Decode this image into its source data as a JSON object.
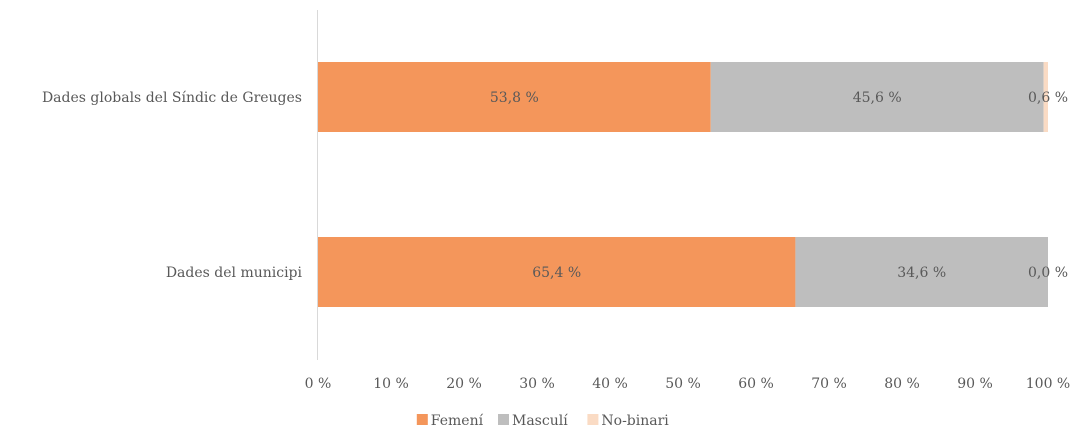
{
  "chart_data": {
    "type": "bar",
    "orientation": "horizontal",
    "stacked": "percent",
    "categories": [
      "Dades globals del Síndic de Greuges",
      "Dades del municipi"
    ],
    "series": [
      {
        "name": "Femení",
        "values": [
          53.8,
          65.4
        ],
        "labels": [
          "53,8 %",
          "65,4 %"
        ],
        "color": "#F4965B"
      },
      {
        "name": "Masculí",
        "values": [
          45.6,
          34.6
        ],
        "labels": [
          "45,6 %",
          "34,6 %"
        ],
        "color": "#BEBEBE"
      },
      {
        "name": "No-binari",
        "values": [
          0.6,
          0.0
        ],
        "labels": [
          "0,6 %",
          "0,0 %"
        ],
        "color": "#FADBC4"
      }
    ],
    "xlim": [
      0,
      100
    ],
    "xticks": [
      "0 %",
      "10 %",
      "20 %",
      "30 %",
      "40 %",
      "50 %",
      "60 %",
      "70 %",
      "80 %",
      "90 %",
      "100 %"
    ],
    "grid": false,
    "legend": "bottom",
    "title": "",
    "xlabel": "",
    "ylabel": ""
  }
}
